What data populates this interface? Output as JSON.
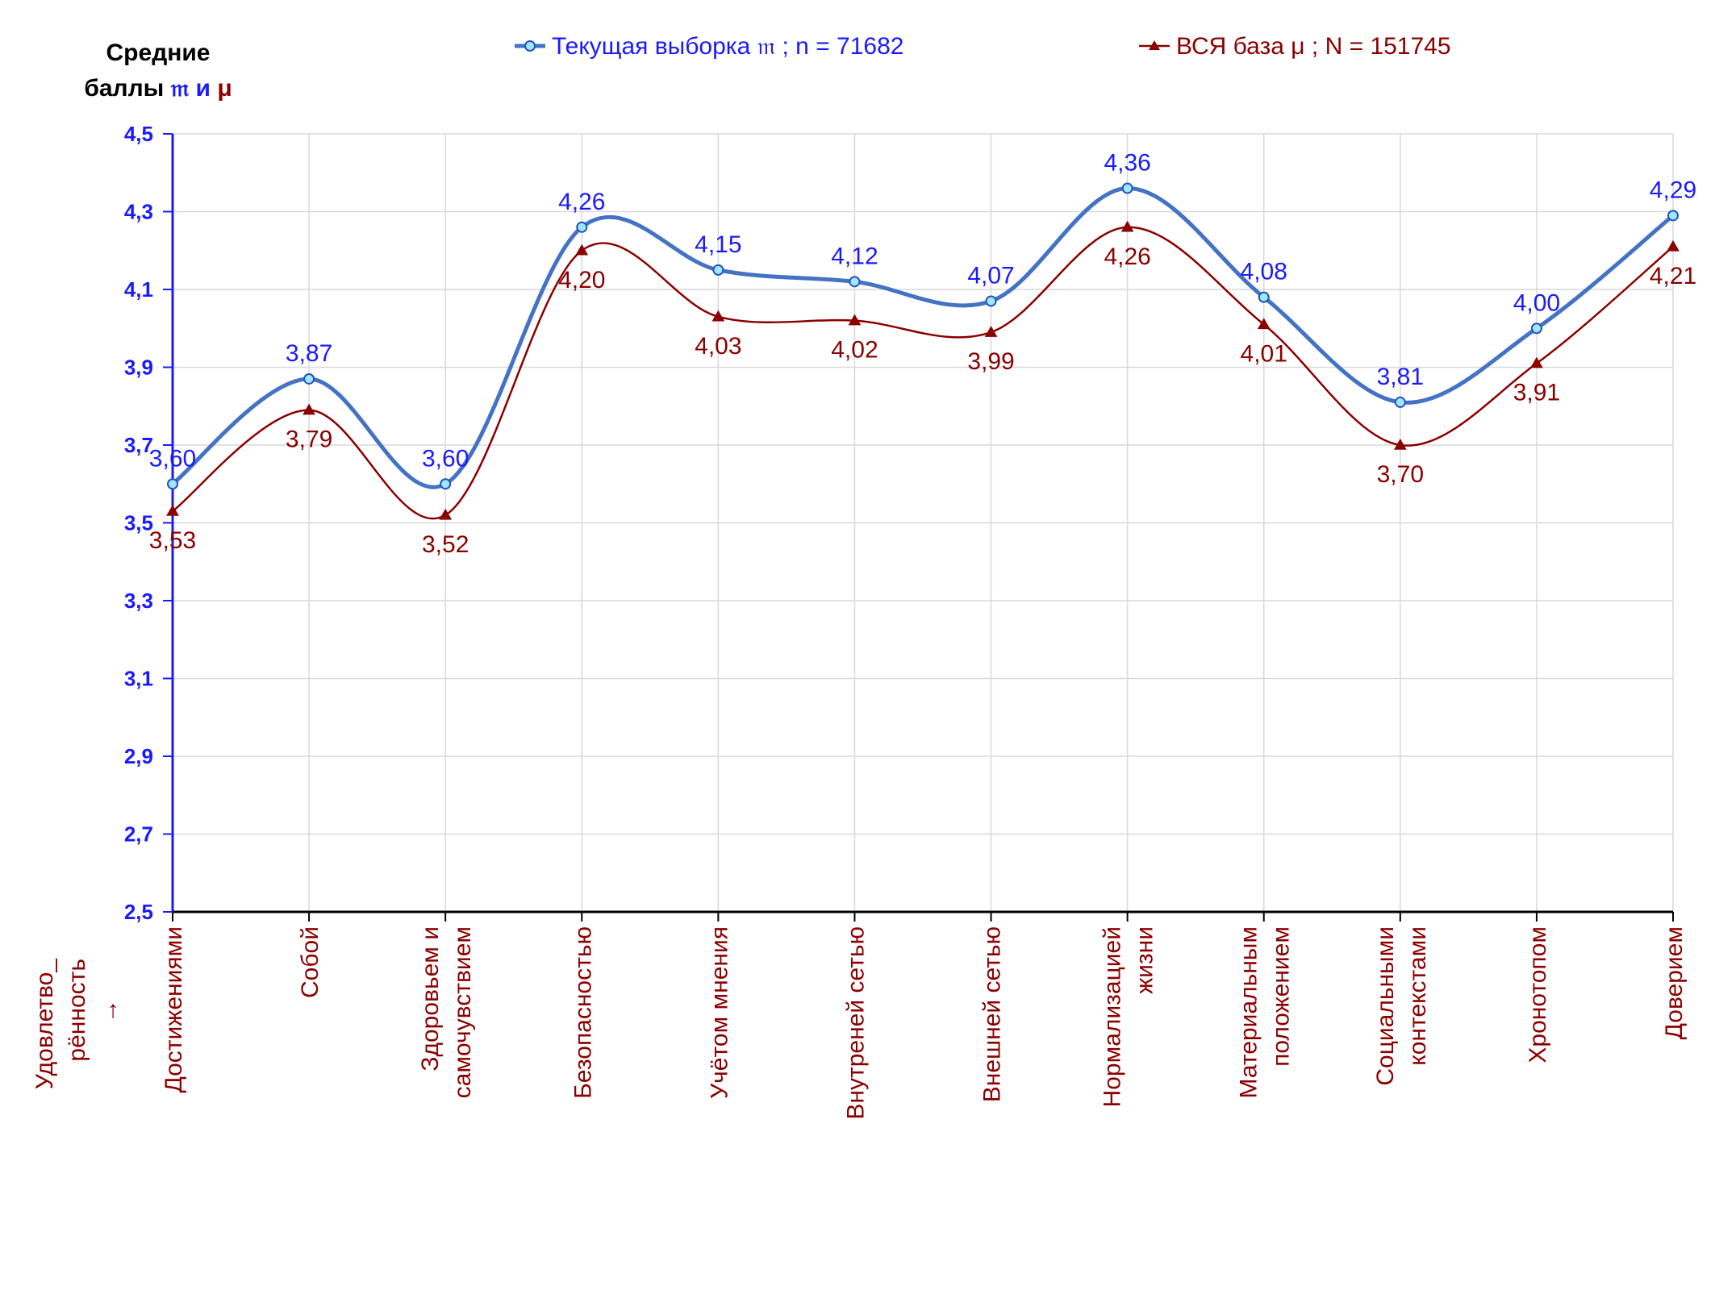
{
  "chart_data": {
    "type": "line",
    "ylabel_line1": "Средние",
    "ylabel_line2": "баллы",
    "ylabel_sym1": "𝔪",
    "ylabel_and": "и",
    "ylabel_sym2": "μ",
    "xlabel_lines": [
      "Удовлетво_",
      "рённость",
      "→"
    ],
    "ylim": [
      2.5,
      4.5
    ],
    "yticks": [
      "2,5",
      "2,7",
      "2,9",
      "3,1",
      "3,3",
      "3,5",
      "3,7",
      "3,9",
      "4,1",
      "4,3",
      "4,5"
    ],
    "ytick_values": [
      2.5,
      2.7,
      2.9,
      3.1,
      3.3,
      3.5,
      3.7,
      3.9,
      4.1,
      4.3,
      4.5
    ],
    "grid": true,
    "legend_position": "top",
    "categories": [
      [
        "Достижениями"
      ],
      [
        "Собой"
      ],
      [
        "Здоровьем и",
        "самочувствием"
      ],
      [
        "Безопасностью"
      ],
      [
        "Учётом мнения"
      ],
      [
        "Внутреней сетью"
      ],
      [
        "Внешней сетью"
      ],
      [
        "Нормализацией",
        "жизни"
      ],
      [
        "Материальным",
        "положением"
      ],
      [
        "Социальными",
        "контекстами"
      ],
      [
        "Хронотопом"
      ],
      [
        "Доверием"
      ]
    ],
    "series": [
      {
        "name": "Текущая выборка 𝔪 ; n = 71682",
        "color": "#4472c4",
        "label_color": "#1a1aff",
        "marker": "circle",
        "values": [
          3.6,
          3.87,
          3.6,
          4.26,
          4.15,
          4.12,
          4.07,
          4.36,
          4.08,
          3.81,
          4.0,
          4.29
        ],
        "labels": [
          "3,60",
          "3,87",
          "3,60",
          "4,26",
          "4,15",
          "4,12",
          "4,07",
          "4,36",
          "4,08",
          "3,81",
          "4,00",
          "4,29"
        ]
      },
      {
        "name": "ВСЯ база μ ; N = 151745",
        "color": "#8b0000",
        "label_color": "#8b0000",
        "marker": "triangle",
        "values": [
          3.53,
          3.79,
          3.52,
          4.2,
          4.03,
          4.02,
          3.99,
          4.26,
          4.01,
          3.7,
          3.91,
          4.21
        ],
        "labels": [
          "3,53",
          "3,79",
          "3,52",
          "4,20",
          "4,03",
          "4,02",
          "3,99",
          "4,26",
          "4,01",
          "3,70",
          "3,91",
          "4,21"
        ]
      }
    ],
    "colors": {
      "axis": "#1a1aff",
      "category_text": "#8b0000",
      "grid": "#d9d9d9"
    }
  }
}
